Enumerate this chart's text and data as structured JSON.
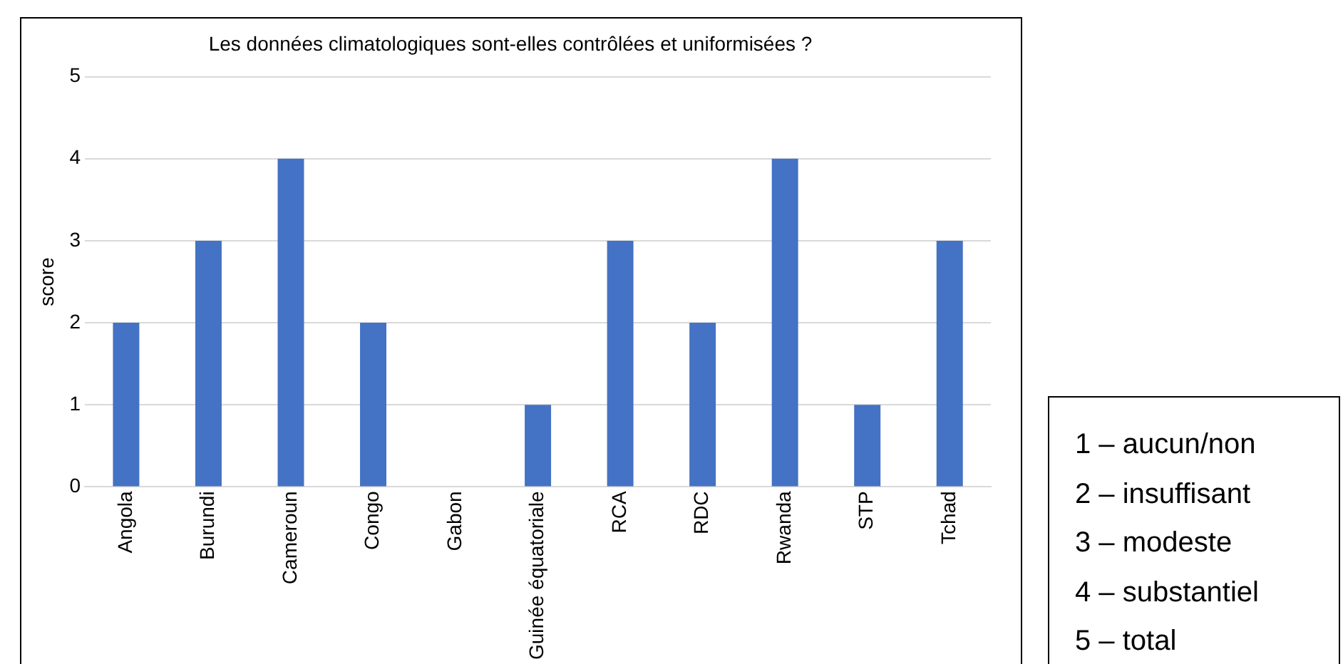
{
  "chart_data": {
    "type": "bar",
    "title": "Les données climatologiques sont-elles contrôlées et uniformisées ?",
    "ylabel": "score",
    "categories": [
      "Angola",
      "Burundi",
      "Cameroun",
      "Congo",
      "Gabon",
      "Guinée équatoriale",
      "RCA",
      "RDC",
      "Rwanda",
      "STP",
      "Tchad"
    ],
    "values": [
      2,
      3,
      4,
      2,
      0,
      1,
      3,
      2,
      4,
      1,
      3
    ],
    "color": "#4472c4",
    "ylim": [
      0,
      5
    ],
    "yticks": [
      0,
      1,
      2,
      3,
      4,
      5
    ],
    "grid": "y",
    "legend": false,
    "annotations": [
      "1 – aucun/non",
      "2 – insuffisant",
      "3 – modeste",
      "4 – substantiel",
      "5 – total"
    ]
  }
}
